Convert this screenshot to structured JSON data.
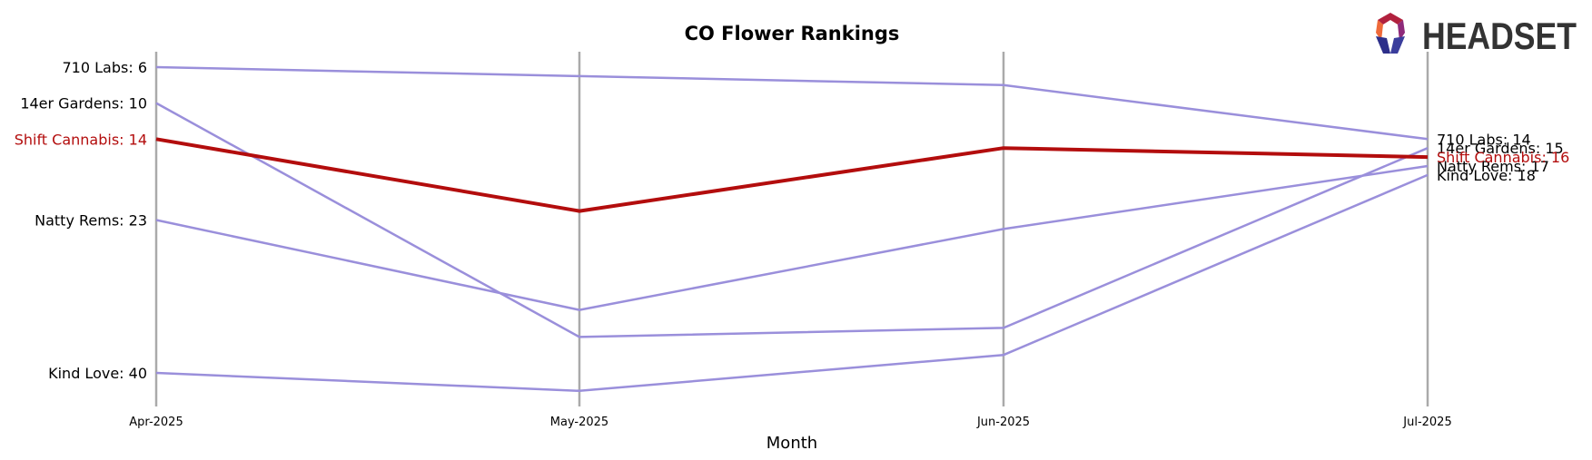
{
  "chart_data": {
    "type": "line",
    "title": "CO Flower Rankings",
    "xlabel": "Month",
    "ylabel": "",
    "y_inverted": true,
    "ylim": [
      4,
      46
    ],
    "x": [
      "Apr-2025",
      "May-2025",
      "Jun-2025",
      "Jul-2025"
    ],
    "series": [
      {
        "name": "710 Labs",
        "values": [
          6,
          7,
          8,
          14
        ],
        "highlight": false
      },
      {
        "name": "14er Gardens",
        "values": [
          10,
          36,
          35,
          15
        ],
        "highlight": false
      },
      {
        "name": "Natty Rems",
        "values": [
          23,
          33,
          24,
          17
        ],
        "highlight": false
      },
      {
        "name": "Kind Love",
        "values": [
          40,
          42,
          38,
          18
        ],
        "highlight": false
      },
      {
        "name": "Shift Cannabis",
        "values": [
          14,
          22,
          15,
          16
        ],
        "highlight": true
      }
    ],
    "start_labels": [
      "710 Labs: 6",
      "14er Gardens: 10",
      "Shift Cannabis: 14",
      "Natty Rems: 23",
      "Kind Love: 40"
    ],
    "end_labels": [
      "710 Labs: 14",
      "14er Gardens: 15",
      "Shift Cannabis: 16",
      "Natty Rems: 17",
      "Kind Love: 18"
    ],
    "colors": {
      "default_line": "#9a8fdb",
      "highlight": "#b30d0d",
      "axis": "#aaaaaa"
    },
    "grid": false,
    "legend": "none"
  },
  "logo": {
    "text": "HEADSET"
  }
}
